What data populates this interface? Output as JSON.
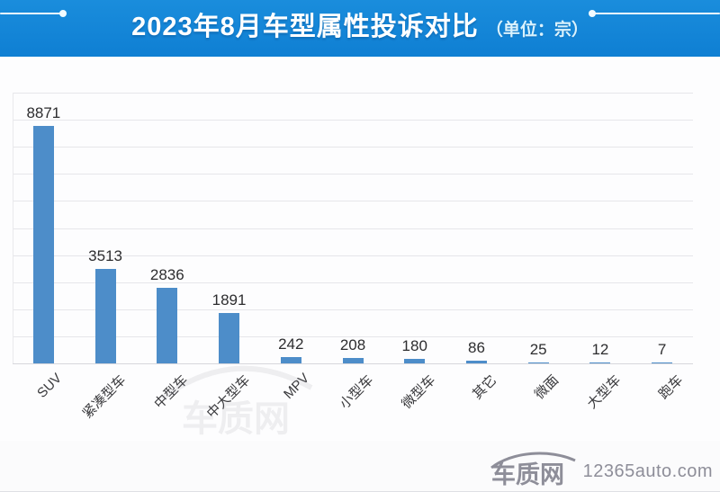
{
  "header": {
    "title": "2023年8月车型属性投诉对比",
    "unit_label": "（单位：宗）"
  },
  "chart_data": {
    "type": "bar",
    "title": "2023年8月车型属性投诉对比",
    "unit": "宗",
    "categories": [
      "SUV",
      "紧凑型车",
      "中型车",
      "中大型车",
      "MPV",
      "小型车",
      "微型车",
      "其它",
      "微面",
      "大型车",
      "跑车"
    ],
    "values": [
      8871,
      3513,
      2836,
      1891,
      242,
      208,
      180,
      86,
      25,
      12,
      7
    ],
    "ylim": [
      0,
      10000
    ],
    "grid_interval": 1000,
    "grid": "horizontal-only",
    "y_axis_tick_labels_shown": false,
    "value_labels_shown": true,
    "bar_color": "#4d8dc9",
    "legend": "none"
  },
  "colors": {
    "banner_blue": "#1285d8",
    "bar_blue": "#4d8dc9",
    "unit_text": "#d9f2fd",
    "logo_gray": "#8e8e99"
  },
  "watermark": {
    "text": "车质网"
  },
  "footer": {
    "logo_text": "车质网",
    "site_text": "12365auto.com"
  }
}
